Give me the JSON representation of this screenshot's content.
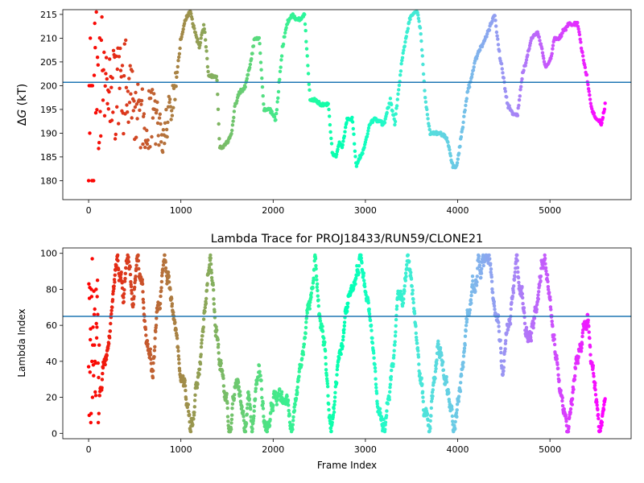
{
  "chart_data": [
    {
      "type": "scatter",
      "title": "",
      "xlabel": "",
      "ylabel": "ΔG (kT)",
      "ylabel_delta": "Δ",
      "ylabel_var": "G",
      "ylabel_unit": " (kT)",
      "xlim": [
        -280,
        5880
      ],
      "ylim": [
        176,
        216
      ],
      "xticks": [
        0,
        1000,
        2000,
        3000,
        4000,
        5000
      ],
      "xtick_labels": [
        "0",
        "1000",
        "2000",
        "3000",
        "4000",
        "5000"
      ],
      "yticks": [
        180,
        185,
        190,
        195,
        200,
        205,
        210,
        215
      ],
      "ytick_labels": [
        "180",
        "185",
        "190",
        "195",
        "200",
        "205",
        "210",
        "215"
      ],
      "hline": 200.7,
      "hline_color": "#1f77b4",
      "colormap": "rainbow (red at frame 0 → violet at last frame)",
      "n_frames": 5600,
      "series_summary": "points colored by frame index; free energy estimate stabilizes into stepped plateaus after frame ~1000",
      "trace_x": [
        0,
        40,
        80,
        100,
        150,
        250,
        400,
        550,
        700,
        800,
        900,
        950,
        1000,
        1050,
        1100,
        1130,
        1200,
        1250,
        1300,
        1390,
        1420,
        1450,
        1500,
        1550,
        1580,
        1620,
        1700,
        1760,
        1800,
        1850,
        1900,
        1960,
        2030,
        2100,
        2150,
        2220,
        2240,
        2300,
        2340,
        2400,
        2460,
        2520,
        2600,
        2640,
        2680,
        2720,
        2750,
        2800,
        2860,
        2900,
        2940,
        2990,
        3050,
        3100,
        3200,
        3270,
        3320,
        3400,
        3440,
        3480,
        3560,
        3600,
        3650,
        3700,
        3800,
        3880,
        3950,
        3990,
        4030,
        4100,
        4200,
        4300,
        4400,
        4450,
        4480,
        4540,
        4600,
        4650,
        4700,
        4800,
        4870,
        4910,
        4950,
        5000,
        5050,
        5100,
        5200,
        5300,
        5350,
        5400,
        5450,
        5500,
        5560,
        5600
      ],
      "trace_y": [
        200,
        200,
        205,
        199,
        202,
        197,
        200,
        194,
        193,
        190,
        196,
        201,
        210,
        214,
        216,
        213,
        208,
        213,
        202,
        202,
        187,
        187,
        188,
        190,
        195,
        198,
        200,
        205,
        210,
        210,
        195,
        195,
        193,
        208,
        213,
        215,
        214,
        214,
        215,
        197,
        197,
        196,
        196,
        186,
        185,
        188,
        187,
        193,
        193,
        183,
        185,
        187,
        192,
        193,
        192,
        197,
        192,
        206,
        210,
        214,
        216,
        211,
        197,
        190,
        190,
        189,
        183,
        183,
        188,
        198,
        206,
        210,
        215,
        207,
        204,
        196,
        194,
        194,
        202,
        210,
        211,
        208,
        204,
        205,
        210,
        210,
        213,
        213,
        207,
        202,
        195,
        193,
        192,
        196
      ],
      "scatter_early_frames": "frames 0–1000 show wide scatter between roughly 176 and 216 kT"
    },
    {
      "type": "scatter",
      "title": "Lambda Trace for PROJ18433/RUN59/CLONE21",
      "xlabel": "Frame Index",
      "ylabel": "Lambda Index",
      "xlim": [
        -280,
        5880
      ],
      "ylim": [
        -3,
        103
      ],
      "xticks": [
        0,
        1000,
        2000,
        3000,
        4000,
        5000
      ],
      "xtick_labels": [
        "0",
        "1000",
        "2000",
        "3000",
        "4000",
        "5000"
      ],
      "yticks": [
        0,
        20,
        40,
        60,
        80,
        100
      ],
      "ytick_labels": [
        "0",
        "20",
        "40",
        "60",
        "80",
        "100"
      ],
      "hline": 65,
      "hline_color": "#1f77b4",
      "colormap": "rainbow (red at frame 0 → violet at last frame)",
      "n_frames": 5600,
      "lambda_range": [
        1,
        99
      ],
      "series_summary": "lambda index random-walks across 1–99; sweeps every ~150–300 frames"
    }
  ]
}
